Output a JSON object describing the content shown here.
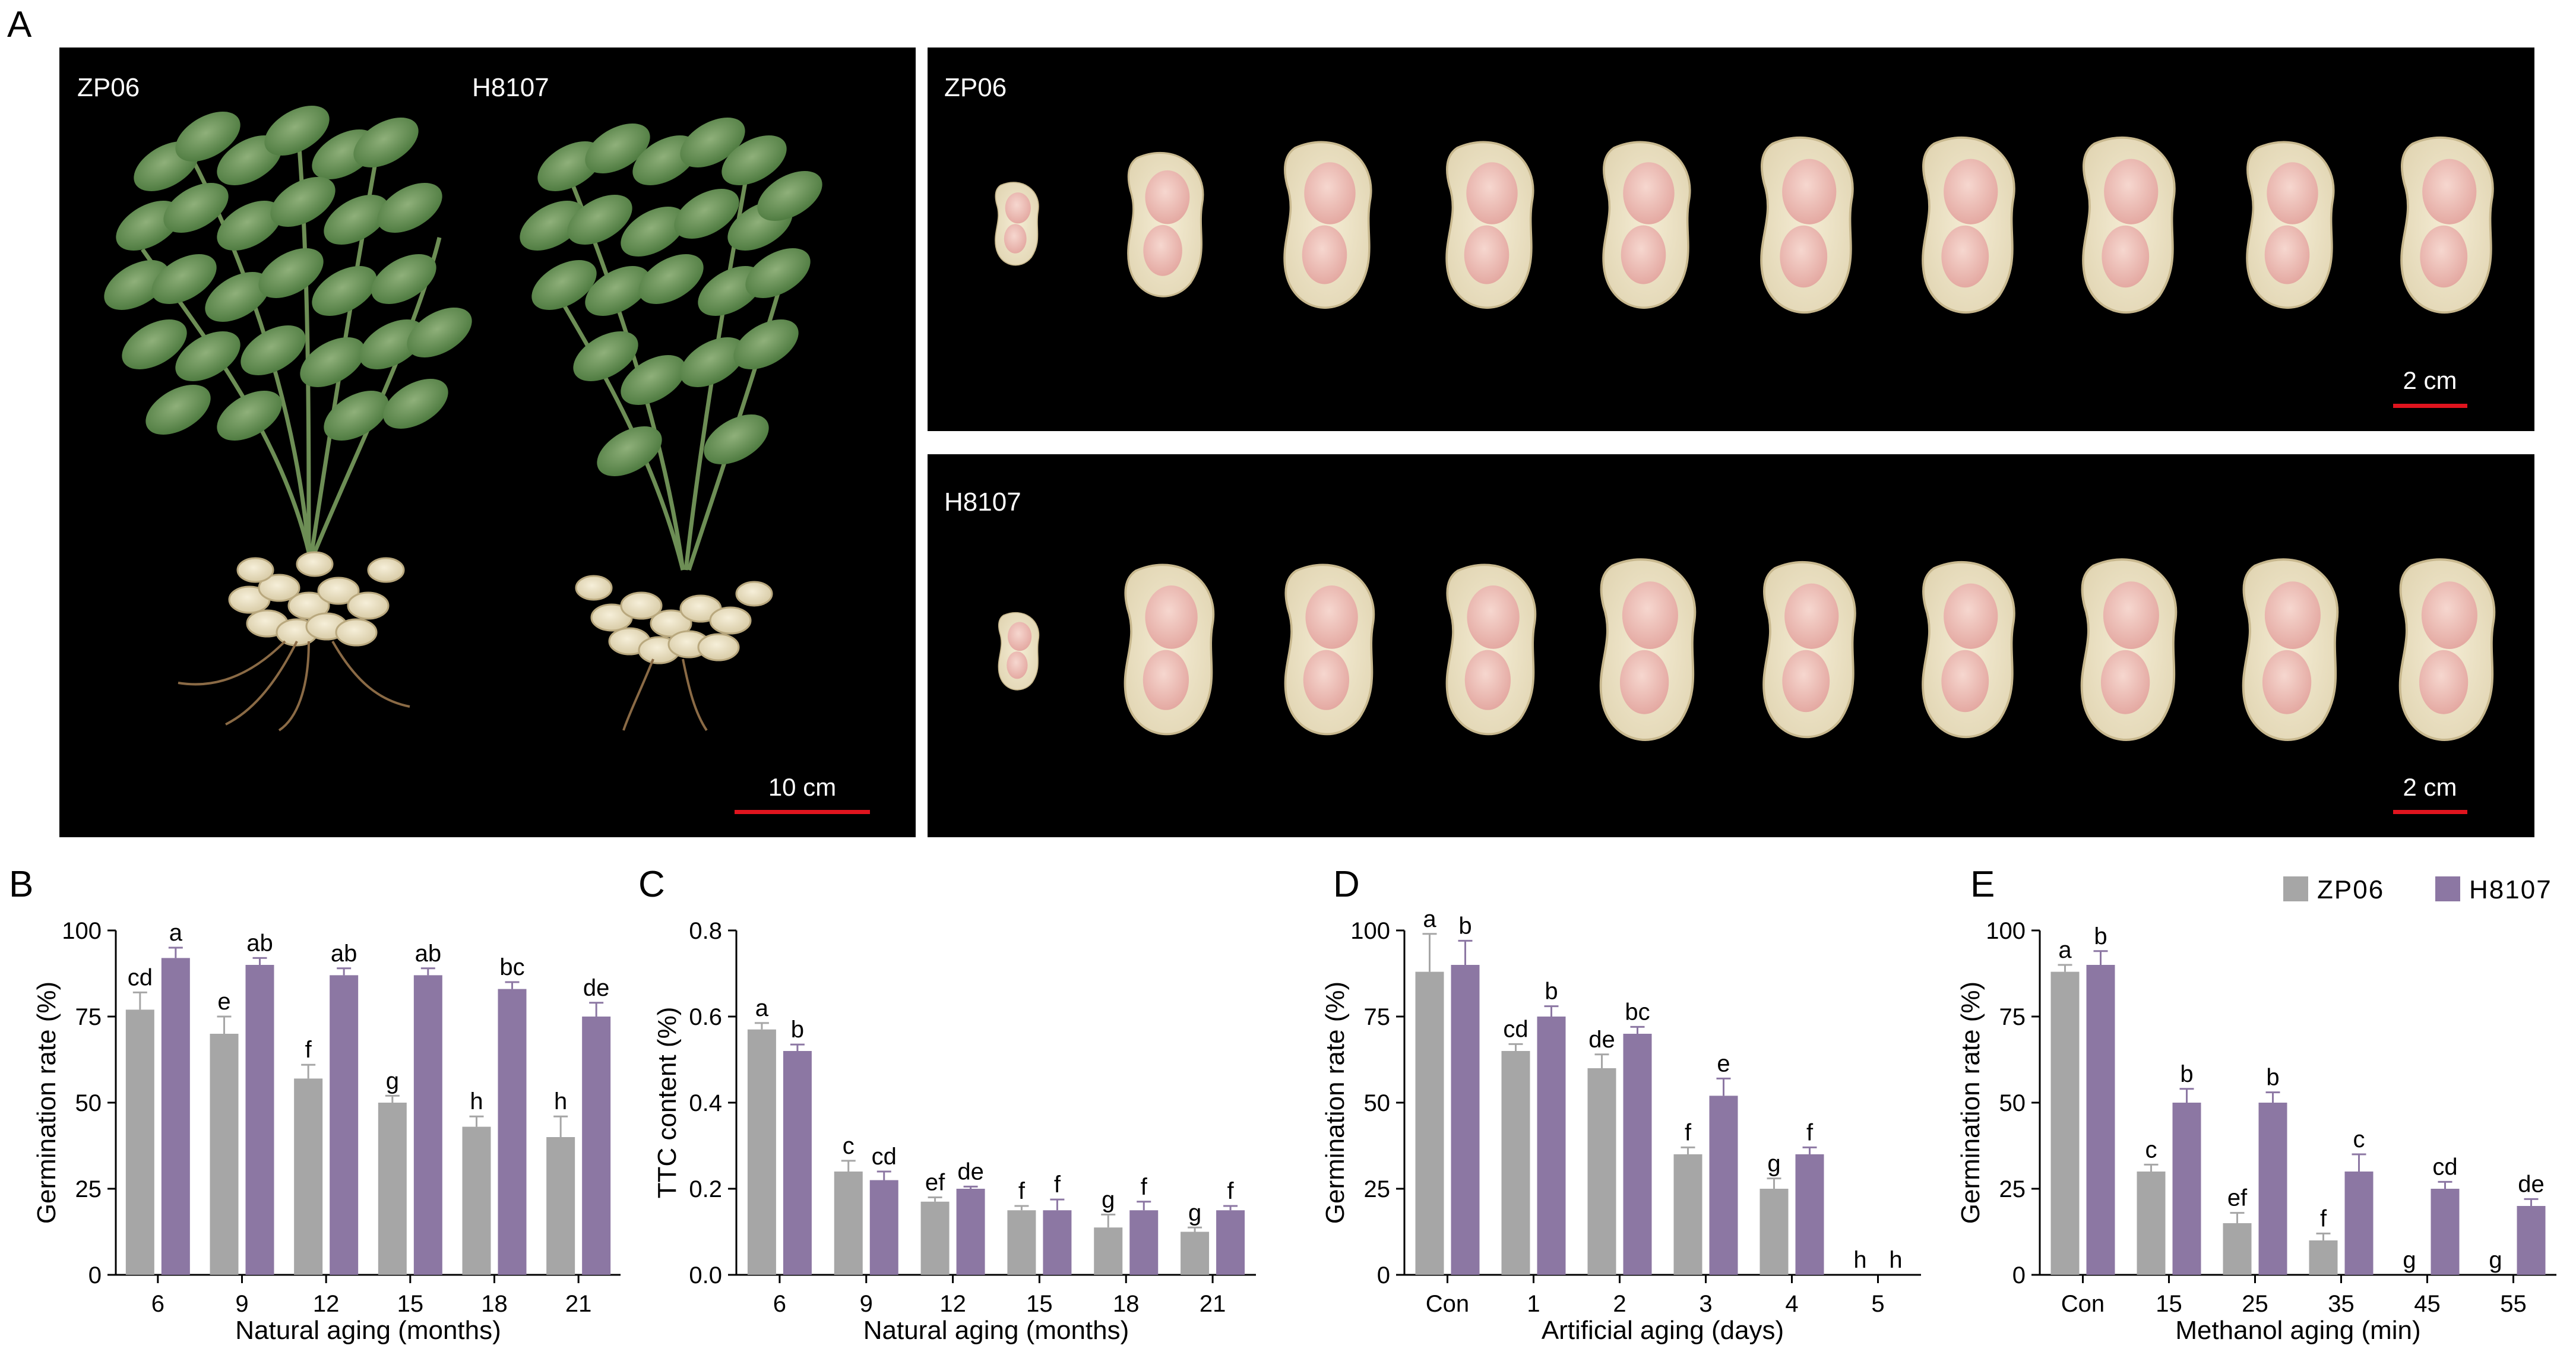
{
  "panel_a": {
    "letter": "A",
    "plants": {
      "left_label": "ZP06",
      "right_label": "H8107",
      "scale": "10 cm"
    },
    "pods_top": {
      "label": "ZP06",
      "scale": "2 cm"
    },
    "pods_bottom": {
      "label": "H8107",
      "scale": "2 cm"
    }
  },
  "colors": {
    "zp06": "#a6a6a6",
    "h8107": "#8c77a3",
    "scale_bar": "#e0141e",
    "photo_bg": "#000000"
  },
  "legend": {
    "items": [
      "ZP06",
      "H8107"
    ]
  },
  "chart_data": [
    {
      "panel": "B",
      "type": "bar",
      "xlabel": "Natural aging (months)",
      "ylabel": "Germination rate (%)",
      "ylim": [
        0,
        100
      ],
      "yticks": [
        "0",
        "25",
        "50",
        "75",
        "100"
      ],
      "categories": [
        "6",
        "9",
        "12",
        "15",
        "18",
        "21"
      ],
      "series": [
        {
          "name": "ZP06",
          "values": [
            77,
            70,
            57,
            50,
            43,
            40
          ],
          "errors": [
            5,
            5,
            4,
            2,
            3,
            6
          ],
          "labels": [
            "cd",
            "e",
            "f",
            "g",
            "h",
            "h"
          ]
        },
        {
          "name": "H8107",
          "values": [
            92,
            90,
            87,
            87,
            83,
            75
          ],
          "errors": [
            3,
            2,
            2,
            2,
            2,
            4
          ],
          "labels": [
            "a",
            "ab",
            "ab",
            "ab",
            "bc",
            "de"
          ]
        }
      ]
    },
    {
      "panel": "C",
      "type": "bar",
      "xlabel": "Natural aging (months)",
      "ylabel": "TTC content (%)",
      "ylim": [
        0,
        0.8
      ],
      "yticks": [
        "0.0",
        "0.2",
        "0.4",
        "0.6",
        "0.8"
      ],
      "categories": [
        "6",
        "9",
        "12",
        "15",
        "18",
        "21"
      ],
      "series": [
        {
          "name": "ZP06",
          "values": [
            0.57,
            0.24,
            0.17,
            0.15,
            0.11,
            0.1
          ],
          "errors": [
            0.015,
            0.025,
            0.01,
            0.01,
            0.03,
            0.01
          ],
          "labels": [
            "a",
            "c",
            "ef",
            "f",
            "g",
            "g"
          ]
        },
        {
          "name": "H8107",
          "values": [
            0.52,
            0.22,
            0.2,
            0.15,
            0.15,
            0.15
          ],
          "errors": [
            0.015,
            0.02,
            0.005,
            0.025,
            0.02,
            0.01
          ],
          "labels": [
            "b",
            "cd",
            "de",
            "f",
            "f",
            "f"
          ]
        }
      ]
    },
    {
      "panel": "D",
      "type": "bar",
      "xlabel": "Artificial aging (days)",
      "ylabel": "Germination rate (%)",
      "ylim": [
        0,
        100
      ],
      "yticks": [
        "0",
        "25",
        "50",
        "75",
        "100"
      ],
      "categories": [
        "Con",
        "1",
        "2",
        "3",
        "4",
        "5"
      ],
      "series": [
        {
          "name": "ZP06",
          "values": [
            88,
            65,
            60,
            35,
            25,
            0
          ],
          "errors": [
            11,
            2,
            4,
            2,
            3,
            0
          ],
          "labels": [
            "a",
            "cd",
            "de",
            "f",
            "g",
            "h"
          ]
        },
        {
          "name": "H8107",
          "values": [
            90,
            75,
            70,
            52,
            35,
            0
          ],
          "errors": [
            7,
            3,
            2,
            5,
            2,
            0
          ],
          "labels": [
            "b",
            "b",
            "bc",
            "e",
            "f",
            "h"
          ]
        }
      ]
    },
    {
      "panel": "E",
      "type": "bar",
      "xlabel": "Methanol aging (min)",
      "ylabel": "Germination rate (%)",
      "ylim": [
        0,
        100
      ],
      "yticks": [
        "0",
        "25",
        "50",
        "75",
        "100"
      ],
      "categories": [
        "Con",
        "15",
        "25",
        "35",
        "45",
        "55"
      ],
      "series": [
        {
          "name": "ZP06",
          "values": [
            88,
            30,
            15,
            10,
            0,
            0
          ],
          "errors": [
            2,
            2,
            3,
            2,
            0,
            0
          ],
          "labels": [
            "a",
            "c",
            "ef",
            "f",
            "g",
            "g"
          ]
        },
        {
          "name": "H8107",
          "values": [
            90,
            50,
            50,
            30,
            25,
            20
          ],
          "errors": [
            4,
            4,
            3,
            5,
            2,
            2
          ],
          "labels": [
            "b",
            "b",
            "b",
            "c",
            "cd",
            "de"
          ]
        }
      ]
    }
  ]
}
